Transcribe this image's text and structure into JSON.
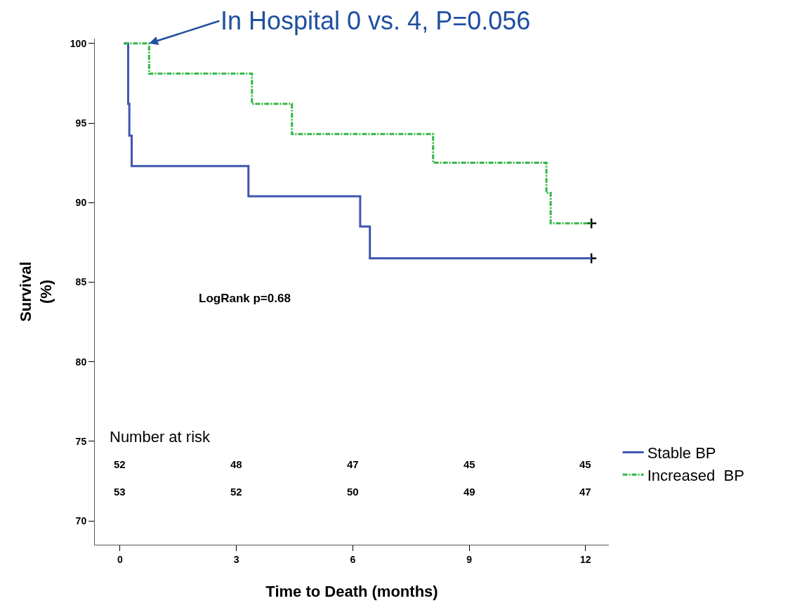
{
  "chart_data": {
    "type": "step",
    "xlabel": "Time to Death (months)",
    "ylabel": "Survival\n(%)",
    "xlim": [
      -0.65,
      12.6
    ],
    "xticks": [
      0,
      3,
      6,
      9,
      12
    ],
    "ylim": [
      68.5,
      100.3
    ],
    "yticks": [
      70,
      75,
      80,
      85,
      90,
      95,
      100
    ],
    "legend": "bottom right",
    "series": [
      {
        "name": "Stable BP",
        "color": "#3f56b0",
        "line_style": "solid",
        "x": [
          0.1,
          0.21,
          0.24,
          0.3,
          3.31,
          6.19,
          6.44,
          12.15
        ],
        "values": [
          100,
          96.2,
          94.2,
          92.3,
          90.4,
          88.5,
          86.5,
          86.5
        ]
      },
      {
        "name": "Increased  BP",
        "color": "#33b845",
        "line_style": "dashdot",
        "x": [
          0.1,
          0.75,
          3.4,
          4.43,
          8.07,
          10.99,
          11.1,
          12.15
        ],
        "values": [
          100,
          98.1,
          96.2,
          94.3,
          92.5,
          90.6,
          88.7,
          88.7
        ]
      },
      {
        "type": "scatter",
        "color": "#000000",
        "marker": "cross",
        "x": [
          12.15,
          12.15
        ],
        "values": [
          86.5,
          88.7
        ]
      }
    ],
    "annotations": [
      {
        "text": "In Hospital 0 vs. 4, P=0.056",
        "x": 0.75,
        "y": 100
      },
      "LogRank p=0.68",
      "Number at risk",
      "52",
      "48",
      "47",
      "45",
      "45",
      "53",
      "52",
      "50",
      "49",
      "47"
    ]
  }
}
